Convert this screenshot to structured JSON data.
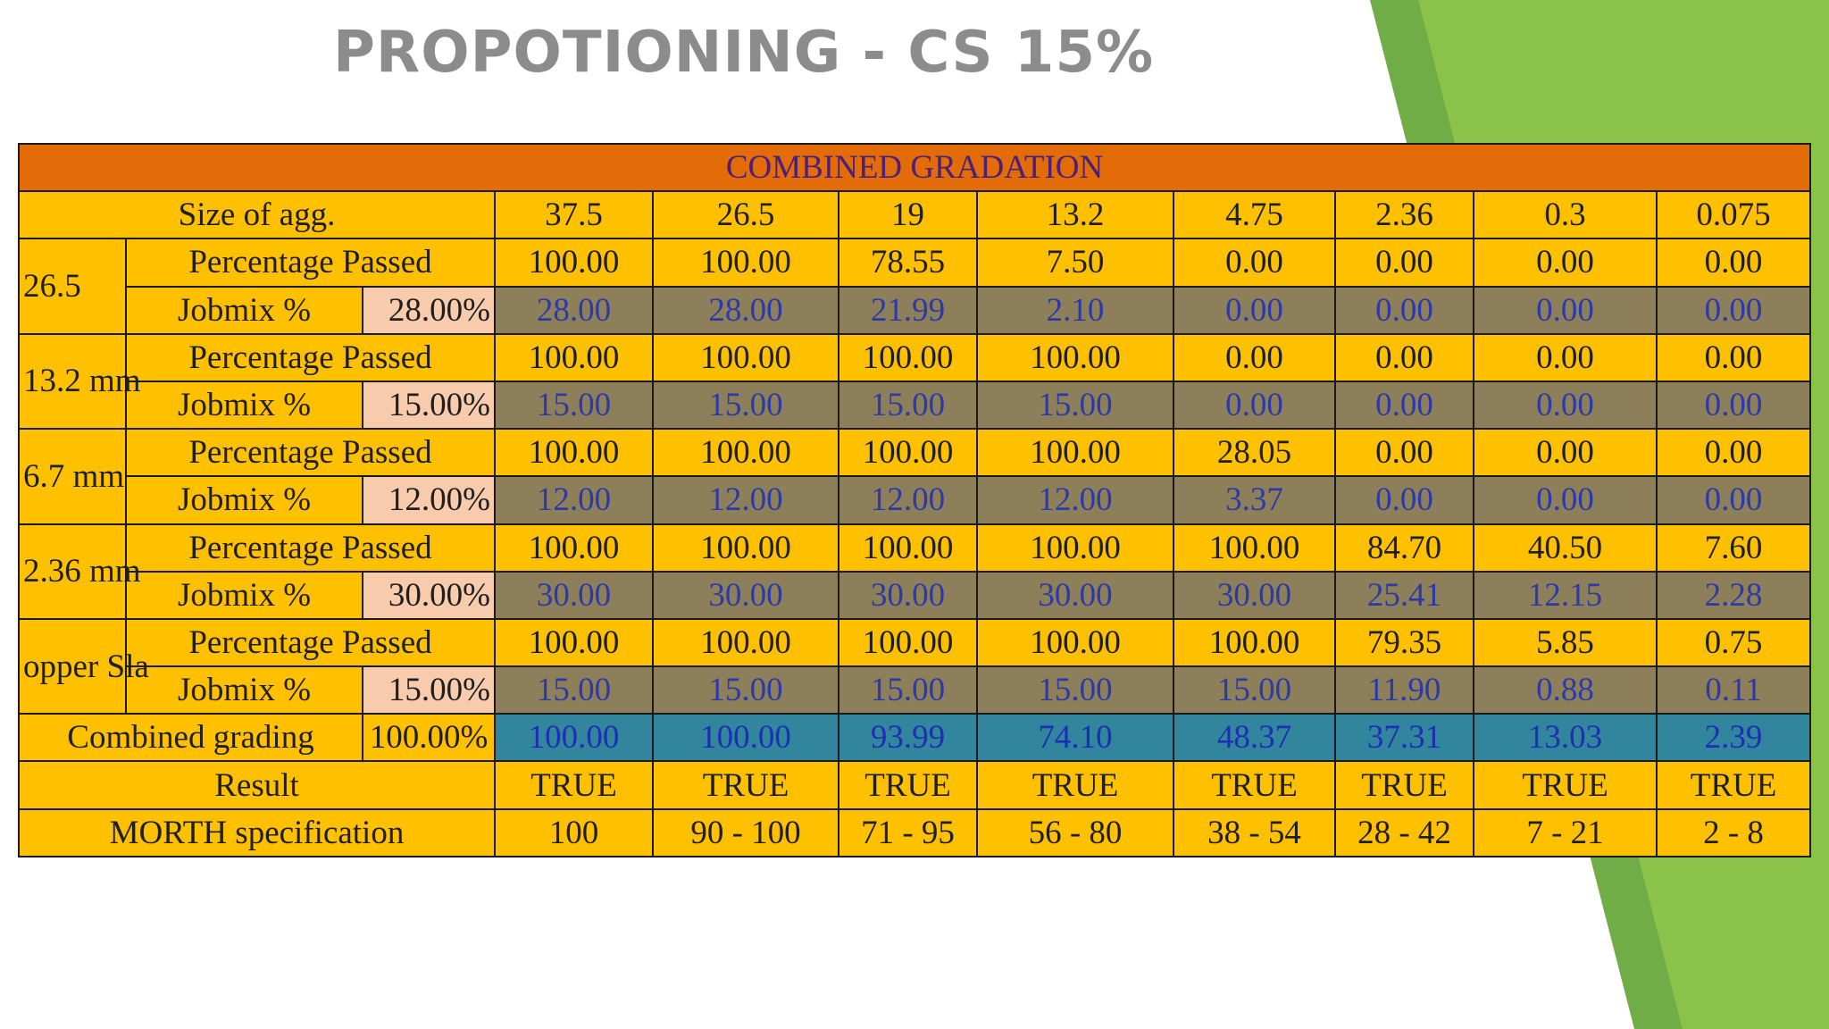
{
  "title": "PROPOTIONING - CS 15%",
  "table": {
    "banner": "COMBINED GRADATION",
    "size_label": "Size of agg.",
    "sizes": [
      "37.5",
      "26.5",
      "19",
      "13.2",
      "4.75",
      "2.36",
      "0.3",
      "0.075"
    ],
    "passed_label": "Percentage Passed",
    "jobmix_label": "Jobmix %",
    "materials": [
      {
        "label": "26.5",
        "pct": "28.00%",
        "passed": [
          "100.00",
          "100.00",
          "78.55",
          "7.50",
          "0.00",
          "0.00",
          "0.00",
          "0.00"
        ],
        "jobmix": [
          "28.00",
          "28.00",
          "21.99",
          "2.10",
          "0.00",
          "0.00",
          "0.00",
          "0.00"
        ]
      },
      {
        "label": "13.2 mm",
        "pct": "15.00%",
        "passed": [
          "100.00",
          "100.00",
          "100.00",
          "100.00",
          "0.00",
          "0.00",
          "0.00",
          "0.00"
        ],
        "jobmix": [
          "15.00",
          "15.00",
          "15.00",
          "15.00",
          "0.00",
          "0.00",
          "0.00",
          "0.00"
        ]
      },
      {
        "label": "6.7 mm",
        "pct": "12.00%",
        "passed": [
          "100.00",
          "100.00",
          "100.00",
          "100.00",
          "28.05",
          "0.00",
          "0.00",
          "0.00"
        ],
        "jobmix": [
          "12.00",
          "12.00",
          "12.00",
          "12.00",
          "3.37",
          "0.00",
          "0.00",
          "0.00"
        ]
      },
      {
        "label": "2.36 mm",
        "pct": "30.00%",
        "passed": [
          "100.00",
          "100.00",
          "100.00",
          "100.00",
          "100.00",
          "84.70",
          "40.50",
          "7.60"
        ],
        "jobmix": [
          "30.00",
          "30.00",
          "30.00",
          "30.00",
          "30.00",
          "25.41",
          "12.15",
          "2.28"
        ]
      },
      {
        "label": "opper Sla",
        "pct": "15.00%",
        "passed": [
          "100.00",
          "100.00",
          "100.00",
          "100.00",
          "100.00",
          "79.35",
          "5.85",
          "0.75"
        ],
        "jobmix": [
          "15.00",
          "15.00",
          "15.00",
          "15.00",
          "15.00",
          "11.90",
          "0.88",
          "0.11"
        ]
      }
    ],
    "combined": {
      "label": "Combined grading",
      "pct": "100.00%",
      "values": [
        "100.00",
        "100.00",
        "93.99",
        "74.10",
        "48.37",
        "37.31",
        "13.03",
        "2.39"
      ]
    },
    "result": {
      "label": "Result",
      "values": [
        "TRUE",
        "TRUE",
        "TRUE",
        "TRUE",
        "TRUE",
        "TRUE",
        "TRUE",
        "TRUE"
      ]
    },
    "morth": {
      "label": "MORTH specification",
      "values": [
        "100",
        "90 - 100",
        "71 - 95",
        "56 - 80",
        "38 - 54",
        "28 - 42",
        "7 - 21",
        "2 - 8"
      ]
    }
  },
  "colors": {
    "accent_dark_green": "#70ad47",
    "accent_light_green": "#8bc34a",
    "title_gray": "#8c8c8c",
    "table_yellow": "#ffc000",
    "banner_orange": "#e36c09",
    "jobmix_olive": "#8c7f5a",
    "combined_teal": "#31859c",
    "percent_pink": "#f8cbad"
  }
}
